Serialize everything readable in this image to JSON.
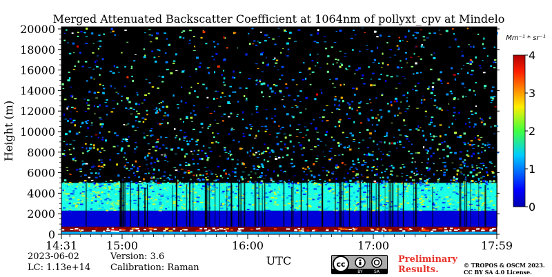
{
  "chart_data": {
    "type": "heatmap",
    "title": "Merged Attenuated Backscatter Coefficient at 1064nm of pollyxt_cpv at Mindelo",
    "xlabel": "UTC",
    "ylabel": "Height (m)",
    "x_ticks": [
      "14:31",
      "15:00",
      "16:00",
      "17:00",
      "17:59"
    ],
    "x_tick_hours": [
      14.5167,
      15.0,
      16.0,
      17.0,
      17.9833
    ],
    "xlim_hours": [
      14.5167,
      17.9833
    ],
    "y_ticks": [
      0,
      2000,
      4000,
      6000,
      8000,
      10000,
      12000,
      14000,
      16000,
      18000,
      20000
    ],
    "ylim": [
      0,
      20200
    ],
    "colorbar": {
      "label": "Mm⁻¹ * sr⁻¹",
      "ticks": [
        0,
        1,
        2,
        3,
        4
      ],
      "range": [
        0,
        4
      ],
      "colormap": "jet"
    },
    "layers": [
      {
        "from_m": 0,
        "to_m": 250,
        "value": 1.2
      },
      {
        "from_m": 250,
        "to_m": 750,
        "value": 4.0
      },
      {
        "from_m": 750,
        "to_m": 2300,
        "value": 0.35
      },
      {
        "from_m": 2300,
        "to_m": 5000,
        "value": 1.6
      },
      {
        "from_m": 5000,
        "to_m": 20200,
        "value": 0.9
      }
    ]
  },
  "info": {
    "date": "2023-06-02",
    "version": "Version: 3.6",
    "lc": "LC: 1.13e+14",
    "calibration": "Calibration: Raman"
  },
  "preliminary": {
    "line1": "Preliminary",
    "line2": "Results."
  },
  "copyright": {
    "line1": "© TROPOS & OSCM 2023.",
    "line2": "CC BY SA 4.0 License."
  },
  "license_badge": {
    "by": "BY",
    "sa": "SA",
    "cc": "cc"
  },
  "colors": {
    "background": "#000000",
    "preliminary": "#e8332a"
  }
}
